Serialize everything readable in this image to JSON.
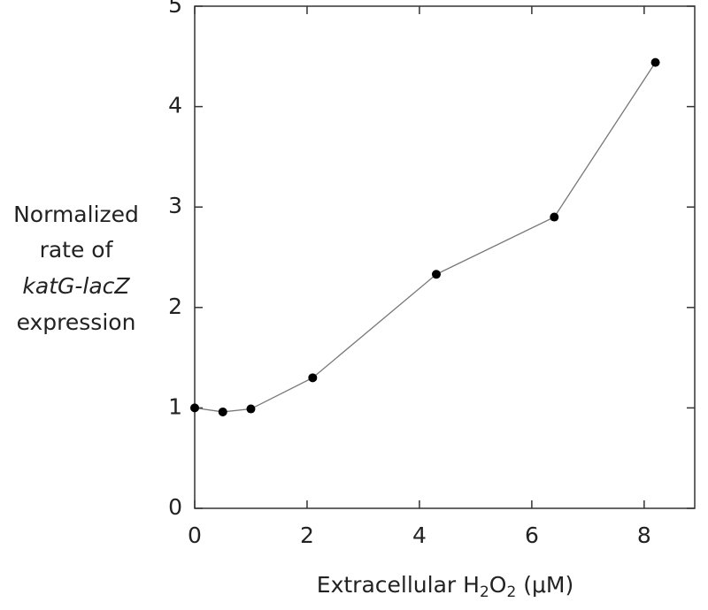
{
  "chart_data": {
    "type": "line",
    "ylabel": [
      "Normalized",
      "rate of",
      "katG-lacZ",
      "expression"
    ],
    "xlabel": [
      "Extracellular H",
      "2",
      "O",
      "2",
      " (μM)"
    ],
    "x": [
      0,
      0.5,
      1.0,
      2.1,
      4.3,
      6.4,
      8.2
    ],
    "series": [
      {
        "name": null,
        "color": "#000000",
        "values": [
          1.0,
          0.96,
          0.99,
          1.3,
          2.33,
          2.9,
          4.44
        ]
      }
    ],
    "xlim": [
      0,
      8.9
    ],
    "ylim": [
      0,
      5
    ],
    "xticks": [
      0,
      2,
      4,
      6,
      8
    ],
    "yticks": [
      0,
      1,
      2,
      3,
      4,
      5
    ]
  }
}
